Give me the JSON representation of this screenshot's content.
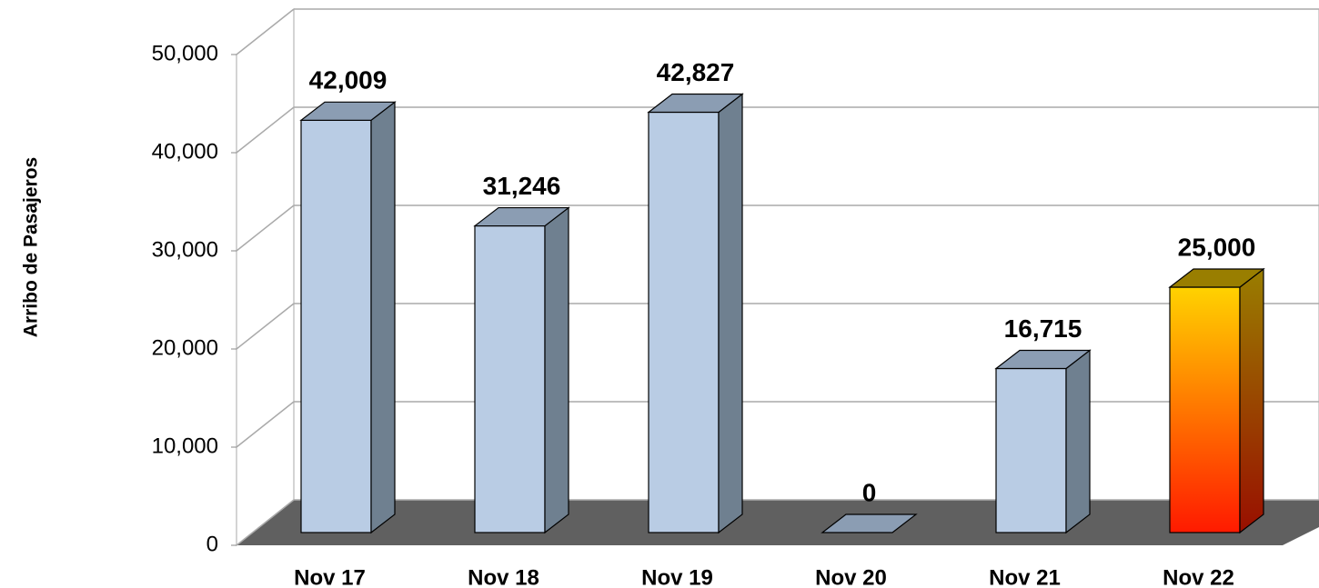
{
  "chart_data": {
    "type": "bar3d",
    "y_label": "Arribo de Pasajeros",
    "categories": [
      "Nov 17",
      "Nov 18",
      "Nov 19",
      "Nov 20",
      "Nov 21",
      "Nov 22"
    ],
    "values": [
      42009,
      31246,
      42827,
      0,
      16715,
      25000
    ],
    "value_labels": [
      "42,009",
      "31,246",
      "42,827",
      "0",
      "16,715",
      "25,000"
    ],
    "colors": [
      "#b9cce4",
      "#b9cce4",
      "#b9cce4",
      "#b9cce4",
      "#b9cce4",
      {
        "top": "#ffd200",
        "bottom": "#ff1a00"
      }
    ],
    "ylim": [
      0,
      50000
    ],
    "yticks": [
      0,
      {
        "value": 10000,
        "label": "10,000"
      },
      {
        "value": 20000,
        "label": "20,000"
      },
      {
        "value": 30000,
        "label": "30,000"
      },
      {
        "value": 40000,
        "label": "40,000"
      },
      {
        "value": 50000,
        "label": "50,000"
      }
    ],
    "grid": true,
    "floor_color": "#606060"
  }
}
